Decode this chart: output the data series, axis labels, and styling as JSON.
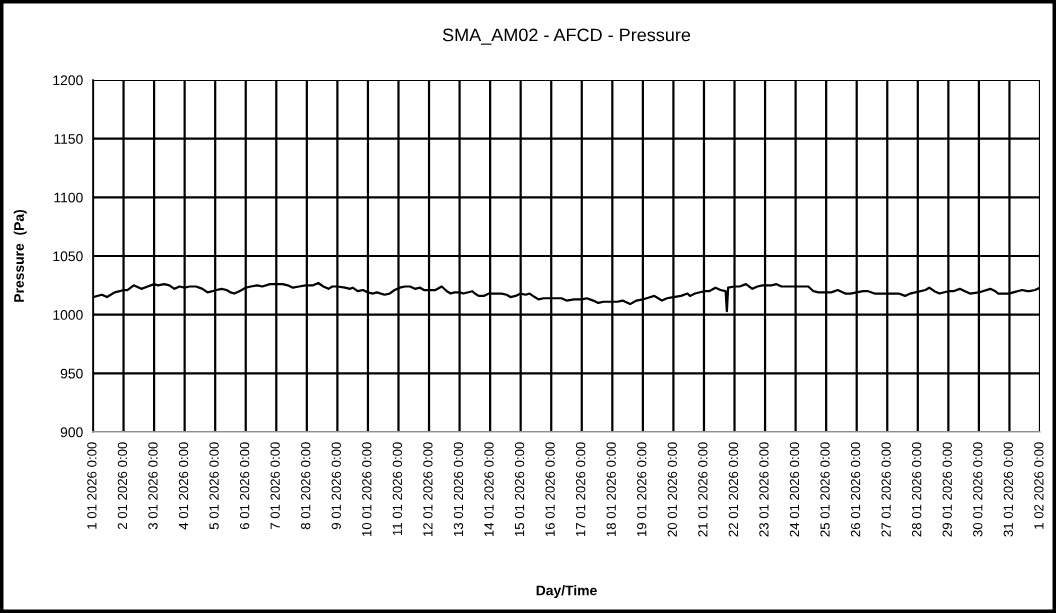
{
  "chart_data": {
    "type": "line",
    "title": "SMA_AM02 - AFCD - Pressure",
    "xlabel": "Day/Time",
    "ylabel": "Pressure  (Pa)",
    "x": [
      "2026-01-01T00:00",
      "2026-01-01T07:00",
      "2026-01-01T11:00",
      "2026-01-01T17:00",
      "2026-01-01T21:00",
      "2026-01-02T00:00",
      "2026-01-02T03:00",
      "2026-01-02T08:00",
      "2026-01-02T14:00",
      "2026-01-02T19:00",
      "2026-01-03T00:00",
      "2026-01-03T03:00",
      "2026-01-03T08:00",
      "2026-01-03T12:00",
      "2026-01-03T16:00",
      "2026-01-03T20:00",
      "2026-01-04T00:00",
      "2026-01-04T04:00",
      "2026-01-04T09:00",
      "2026-01-04T14:00",
      "2026-01-04T18:00",
      "2026-01-04T22:00",
      "2026-01-05T01:00",
      "2026-01-05T05:00",
      "2026-01-05T09:00",
      "2026-01-05T12:00",
      "2026-01-05T15:00",
      "2026-01-05T19:00",
      "2026-01-06T00:00",
      "2026-01-06T04:00",
      "2026-01-06T09:00",
      "2026-01-06T13:00",
      "2026-01-06T19:00",
      "2026-01-07T00:00",
      "2026-01-07T05:00",
      "2026-01-07T09:00",
      "2026-01-07T13:00",
      "2026-01-07T18:00",
      "2026-01-07T23:00",
      "2026-01-08T05:00",
      "2026-01-08T09:00",
      "2026-01-08T13:00",
      "2026-01-08T17:00",
      "2026-01-08T20:00",
      "2026-01-09T00:00",
      "2026-01-09T06:00",
      "2026-01-09T10:00",
      "2026-01-09T12:00",
      "2026-01-09T16:00",
      "2026-01-09T20:00",
      "2026-01-10T00:00",
      "2026-01-10T04:00",
      "2026-01-10T07:00",
      "2026-01-10T13:00",
      "2026-01-10T17:00",
      "2026-01-10T21:00",
      "2026-01-11T01:00",
      "2026-01-11T05:00",
      "2026-01-11T09:00",
      "2026-01-11T13:00",
      "2026-01-11T17:00",
      "2026-01-11T20:00",
      "2026-01-12T00:00",
      "2026-01-12T05:00",
      "2026-01-12T10:00",
      "2026-01-12T14:00",
      "2026-01-12T17:00",
      "2026-01-12T20:00",
      "2026-01-13T00:00",
      "2026-01-13T03:00",
      "2026-01-13T10:00",
      "2026-01-13T12:00",
      "2026-01-13T15:00",
      "2026-01-13T19:00",
      "2026-01-13T23:00",
      "2026-01-14T04:00",
      "2026-01-14T09:00",
      "2026-01-14T13:00",
      "2026-01-14T16:00",
      "2026-01-14T20:00",
      "2026-01-15T00:00",
      "2026-01-15T04:00",
      "2026-01-15T07:00",
      "2026-01-15T11:00",
      "2026-01-15T14:00",
      "2026-01-15T18:00",
      "2026-01-16T00:00",
      "2026-01-16T04:00",
      "2026-01-16T08:00",
      "2026-01-16T12:00",
      "2026-01-16T18:00",
      "2026-01-17T00:00",
      "2026-01-17T04:00",
      "2026-01-17T09:00",
      "2026-01-17T13:00",
      "2026-01-17T17:00",
      "2026-01-18T00:00",
      "2026-01-18T04:00",
      "2026-01-18T08:00",
      "2026-01-18T14:00",
      "2026-01-18T19:00",
      "2026-01-19T00:00",
      "2026-01-19T03:00",
      "2026-01-19T09:00",
      "2026-01-19T12:00",
      "2026-01-19T15:00",
      "2026-01-19T19:00",
      "2026-01-20T00:00",
      "2026-01-20T06:00",
      "2026-01-20T11:00",
      "2026-01-20T13:00",
      "2026-01-20T17:00",
      "2026-01-21T00:00",
      "2026-01-21T04:00",
      "2026-01-21T09:00",
      "2026-01-21T13:00",
      "2026-01-21T17:00",
      "2026-01-21T18:00",
      "2026-01-21T19:00",
      "2026-01-22T00:00",
      "2026-01-22T04:00",
      "2026-01-22T09:00",
      "2026-01-22T14:00",
      "2026-01-22T18:00",
      "2026-01-22T22:00",
      "2026-01-23T05:00",
      "2026-01-23T09:00",
      "2026-01-23T13:00",
      "2026-01-23T18:00",
      "2026-01-23T22:00",
      "2026-01-24T06:00",
      "2026-01-24T10:00",
      "2026-01-24T14:00",
      "2026-01-24T18:00",
      "2026-01-25T00:00",
      "2026-01-25T04:00",
      "2026-01-25T09:00",
      "2026-01-25T15:00",
      "2026-01-25T19:00",
      "2026-01-26T00:00",
      "2026-01-26T05:00",
      "2026-01-26T09:00",
      "2026-01-26T14:00",
      "2026-01-26T18:00",
      "2026-01-27T00:00",
      "2026-01-27T03:00",
      "2026-01-27T09:00",
      "2026-01-27T14:00",
      "2026-01-27T18:00",
      "2026-01-27T22:00",
      "2026-01-28T06:00",
      "2026-01-28T09:00",
      "2026-01-28T13:00",
      "2026-01-28T17:00",
      "2026-01-29T00:00",
      "2026-01-29T04:00",
      "2026-01-29T09:00",
      "2026-01-29T13:00",
      "2026-01-29T17:00",
      "2026-01-30T00:00",
      "2026-01-30T03:00",
      "2026-01-30T09:00",
      "2026-01-30T13:00",
      "2026-01-30T15:00",
      "2026-01-30T20:00",
      "2026-01-31T00:00",
      "2026-01-31T03:00",
      "2026-01-31T10:00",
      "2026-01-31T14:00",
      "2026-01-31T16:00",
      "2026-01-31T20:00",
      "2026-02-01T00:00"
    ],
    "series": [
      {
        "color": "#000000",
        "values": [
          1015,
          1017,
          1015,
          1019,
          1020,
          1021,
          1021,
          1025,
          1022,
          1024,
          1026,
          1025,
          1026,
          1025,
          1022,
          1024,
          1023,
          1024,
          1024,
          1022,
          1019,
          1020,
          1021,
          1022,
          1021,
          1019,
          1018,
          1020,
          1023,
          1024,
          1025,
          1024,
          1026,
          1026,
          1026,
          1025,
          1023,
          1024,
          1025,
          1025,
          1027,
          1024,
          1022,
          1024,
          1024,
          1023,
          1022,
          1023,
          1020,
          1021,
          1019,
          1018,
          1019,
          1017,
          1018,
          1021,
          1023,
          1024,
          1024,
          1022,
          1023,
          1021,
          1021,
          1021,
          1024,
          1020,
          1018,
          1019,
          1019,
          1018,
          1020,
          1018,
          1016,
          1016,
          1018,
          1018,
          1018,
          1017,
          1015,
          1016,
          1018,
          1017,
          1018,
          1015,
          1013,
          1014,
          1014,
          1014,
          1014,
          1012,
          1013,
          1013,
          1014,
          1012,
          1010,
          1011,
          1011,
          1011,
          1012,
          1009,
          1012,
          1013,
          1014,
          1016,
          1014,
          1012,
          1014,
          1015,
          1016,
          1018,
          1016,
          1018,
          1020,
          1020,
          1023,
          1021,
          1020,
          1003,
          1023,
          1024,
          1024,
          1026,
          1022,
          1024,
          1025,
          1025,
          1026,
          1024,
          1024,
          1024,
          1024,
          1024,
          1020,
          1019,
          1019,
          1019,
          1021,
          1018,
          1018,
          1019,
          1020,
          1020,
          1018,
          1018,
          1018,
          1018,
          1018,
          1016,
          1018,
          1019,
          1021,
          1023,
          1020,
          1018,
          1020,
          1020,
          1022,
          1020,
          1018,
          1019,
          1020,
          1022,
          1020,
          1018,
          1018,
          1018,
          1019,
          1021,
          1020,
          1020,
          1021,
          1023
        ]
      }
    ],
    "xlim": [
      "2026-01-01T00:00",
      "2026-02-01T00:00"
    ],
    "xticks": [
      {
        "value": "2026-01-01",
        "label": "1 01 2026 0:00"
      },
      {
        "value": "2026-01-02",
        "label": "2 01 2026 0:00"
      },
      {
        "value": "2026-01-03",
        "label": "3 01 2026 0:00"
      },
      {
        "value": "2026-01-04",
        "label": "4 01 2026 0:00"
      },
      {
        "value": "2026-01-05",
        "label": "5 01 2026 0:00"
      },
      {
        "value": "2026-01-06",
        "label": "6 01 2026 0:00"
      },
      {
        "value": "2026-01-07",
        "label": "7 01 2026 0:00"
      },
      {
        "value": "2026-01-08",
        "label": "8 01 2026 0:00"
      },
      {
        "value": "2026-01-09",
        "label": "9 01 2026 0:00"
      },
      {
        "value": "2026-01-10",
        "label": "10 01 2026 0:00"
      },
      {
        "value": "2026-01-11",
        "label": "11 01 2026 0:00"
      },
      {
        "value": "2026-01-12",
        "label": "12 01 2026 0:00"
      },
      {
        "value": "2026-01-13",
        "label": "13 01 2026 0:00"
      },
      {
        "value": "2026-01-14",
        "label": "14 01 2026 0:00"
      },
      {
        "value": "2026-01-15",
        "label": "15 01 2026 0:00"
      },
      {
        "value": "2026-01-16",
        "label": "16 01 2026 0:00"
      },
      {
        "value": "2026-01-17",
        "label": "17 01 2026 0:00"
      },
      {
        "value": "2026-01-18",
        "label": "18 01 2026 0:00"
      },
      {
        "value": "2026-01-19",
        "label": "19 01 2026 0:00"
      },
      {
        "value": "2026-01-20",
        "label": "20 01 2026 0:00"
      },
      {
        "value": "2026-01-21",
        "label": "21 01 2026 0:00"
      },
      {
        "value": "2026-01-22",
        "label": "22 01 2026 0:00"
      },
      {
        "value": "2026-01-23",
        "label": "23 01 2026 0:00"
      },
      {
        "value": "2026-01-24",
        "label": "24 01 2026 0:00"
      },
      {
        "value": "2026-01-25",
        "label": "25 01 2026 0:00"
      },
      {
        "value": "2026-01-26",
        "label": "26 01 2026 0:00"
      },
      {
        "value": "2026-01-27",
        "label": "27 01 2026 0:00"
      },
      {
        "value": "2026-01-28",
        "label": "28 01 2026 0:00"
      },
      {
        "value": "2026-01-29",
        "label": "29 01 2026 0:00"
      },
      {
        "value": "2026-01-30",
        "label": "30 01 2026 0:00"
      },
      {
        "value": "2026-01-31",
        "label": "31 01 2026 0:00"
      },
      {
        "value": "2026-02-01",
        "label": "1 02 2026 0:00"
      }
    ],
    "ylim": [
      900,
      1200
    ],
    "yticks": [
      900,
      950,
      1000,
      1050,
      1100,
      1150,
      1200
    ],
    "grid": true
  }
}
